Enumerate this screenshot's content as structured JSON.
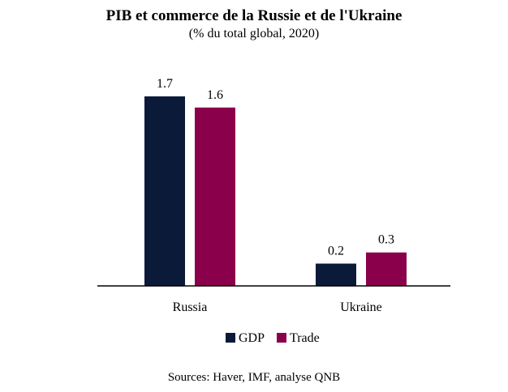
{
  "title": "PIB et commerce de la Russie et de l'Ukraine",
  "subtitle": "(% du total global, 2020)",
  "source": "Sources: Haver, IMF, analyse QNB",
  "colors": {
    "GDP": "#0c1a3a",
    "Trade": "#8b004b",
    "axis": "#000000"
  },
  "chart_data": {
    "type": "bar",
    "categories": [
      "Russia",
      "Ukraine"
    ],
    "series": [
      {
        "name": "GDP",
        "values": [
          1.7,
          0.2
        ]
      },
      {
        "name": "Trade",
        "values": [
          1.6,
          0.3
        ]
      }
    ],
    "data_labels": [
      [
        "1.7",
        "0.2"
      ],
      [
        "1.6",
        "0.3"
      ]
    ],
    "ylim": [
      0,
      1.7
    ],
    "grid": false,
    "legend": "bottom-center"
  }
}
